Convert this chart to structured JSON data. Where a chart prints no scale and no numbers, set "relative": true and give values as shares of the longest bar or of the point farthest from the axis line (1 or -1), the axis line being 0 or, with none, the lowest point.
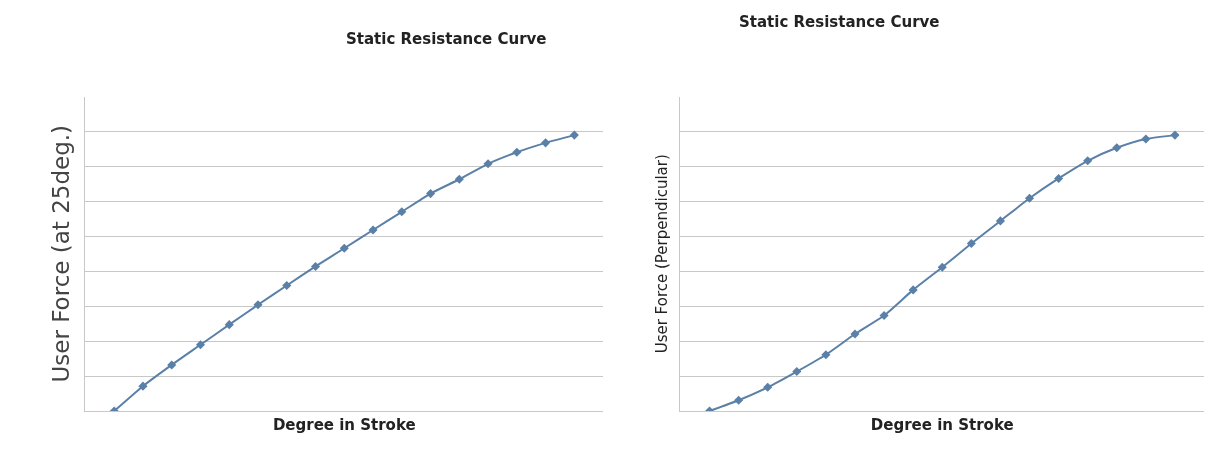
{
  "chart_data": [
    {
      "type": "line",
      "title": "Static Resistance Curve",
      "xlabel": "Degree in Stroke",
      "ylabel": "User Force (at 25deg.)",
      "relative": true,
      "grid": "y",
      "marker": "diamond",
      "line_style": "solid",
      "categories": [
        null,
        null,
        null,
        null,
        null,
        null,
        null,
        null,
        null,
        null,
        null,
        null,
        null,
        null,
        null,
        null,
        null
      ],
      "series": [
        {
          "color": "#5b80a8",
          "values": [
            0,
            0.09,
            0.167,
            0.24,
            0.313,
            0.385,
            0.455,
            0.524,
            0.59,
            0.656,
            0.722,
            0.788,
            0.84,
            0.896,
            0.938,
            0.972,
            1
          ]
        }
      ]
    },
    {
      "type": "line",
      "title": "Static Resistance Curve",
      "xlabel": "Degree in Stroke",
      "ylabel": "User Force (Perpendicular)",
      "relative": true,
      "grid": "y",
      "marker": "diamond",
      "line_style": "solid",
      "categories": [
        null,
        null,
        null,
        null,
        null,
        null,
        null,
        null,
        null,
        null,
        null,
        null,
        null,
        null,
        null,
        null,
        null
      ],
      "series": [
        {
          "color": "#5b80a8",
          "values": [
            0,
            0.039,
            0.086,
            0.143,
            0.204,
            0.279,
            0.346,
            0.439,
            0.521,
            0.607,
            0.689,
            0.771,
            0.843,
            0.907,
            0.954,
            0.986,
            1
          ]
        }
      ]
    }
  ]
}
